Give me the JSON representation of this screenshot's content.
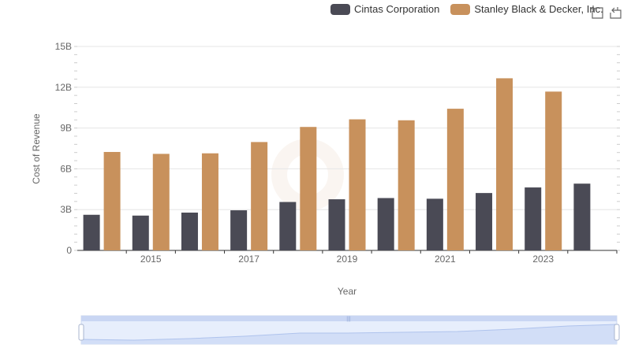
{
  "toolbox": {
    "zoom_icon": "zoom-icon",
    "restore_icon": "restore-icon"
  },
  "chart_data": {
    "type": "bar",
    "title": "",
    "xlabel": "Year",
    "ylabel": "Cost of Revenue",
    "x": [
      2014,
      2015,
      2016,
      2017,
      2018,
      2019,
      2020,
      2021,
      2022,
      2023,
      2024
    ],
    "x_tick_labels": [
      "2015",
      "2017",
      "2019",
      "2021",
      "2023"
    ],
    "ylim": [
      0,
      15000000000
    ],
    "y_tick_labels": [
      "0",
      "3B",
      "6B",
      "9B",
      "12B",
      "15B"
    ],
    "grid": true,
    "legend_position": "top-right",
    "series": [
      {
        "name": "Cintas Corporation",
        "color": "#4a4a55",
        "values": [
          2620000000,
          2560000000,
          2780000000,
          2950000000,
          3560000000,
          3760000000,
          3850000000,
          3800000000,
          4220000000,
          4630000000,
          4910000000
        ]
      },
      {
        "name": "Stanley Black & Decker, Inc.",
        "color": "#c8915c",
        "values": [
          7240000000,
          7100000000,
          7140000000,
          7970000000,
          9080000000,
          9640000000,
          9570000000,
          10420000000,
          12660000000,
          11680000000,
          null
        ]
      }
    ]
  }
}
